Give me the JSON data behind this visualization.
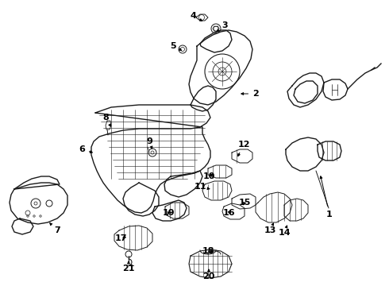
{
  "background": "#ffffff",
  "line_color": "#1a1a1a",
  "label_color": "#000000",
  "lw_main": 1.0,
  "lw_thin": 0.6,
  "labels": [
    [
      1,
      415,
      270,
      403,
      218
    ],
    [
      2,
      322,
      118,
      300,
      118
    ],
    [
      3,
      283,
      32,
      270,
      42
    ],
    [
      4,
      243,
      20,
      258,
      28
    ],
    [
      5,
      218,
      58,
      232,
      65
    ],
    [
      6,
      103,
      188,
      120,
      193
    ],
    [
      7,
      72,
      290,
      60,
      278
    ],
    [
      8,
      133,
      148,
      140,
      160
    ],
    [
      9,
      188,
      178,
      192,
      188
    ],
    [
      10,
      263,
      222,
      272,
      218
    ],
    [
      11,
      252,
      235,
      265,
      238
    ],
    [
      12,
      307,
      182,
      298,
      200
    ],
    [
      13,
      340,
      290,
      345,
      280
    ],
    [
      14,
      358,
      293,
      362,
      283
    ],
    [
      15,
      308,
      255,
      305,
      261
    ],
    [
      16,
      288,
      268,
      293,
      263
    ],
    [
      17,
      152,
      300,
      162,
      298
    ],
    [
      18,
      262,
      316,
      272,
      318
    ],
    [
      19,
      212,
      268,
      218,
      268
    ],
    [
      20,
      263,
      348,
      263,
      338
    ],
    [
      21,
      162,
      338,
      162,
      328
    ]
  ]
}
